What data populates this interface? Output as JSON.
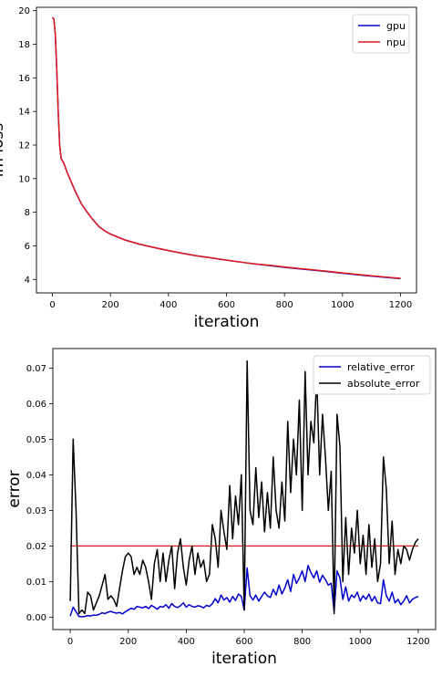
{
  "chart_data": [
    {
      "type": "line",
      "xlabel": "iteration",
      "ylabel": "lm loss",
      "xlim": [
        -55,
        1255
      ],
      "ylim": [
        3.2,
        20.2
      ],
      "xticks": [
        0,
        200,
        400,
        600,
        800,
        1000,
        1200
      ],
      "yticks": [
        4,
        6,
        8,
        10,
        12,
        14,
        16,
        18,
        20
      ],
      "legend_position": "top-right",
      "series": [
        {
          "name": "gpu",
          "color": "#0000cc",
          "x": [
            0,
            5,
            10,
            15,
            20,
            25,
            30,
            40,
            50,
            60,
            80,
            100,
            120,
            140,
            160,
            180,
            200,
            250,
            300,
            350,
            400,
            450,
            500,
            550,
            600,
            650,
            700,
            750,
            800,
            850,
            900,
            950,
            1000,
            1050,
            1100,
            1150,
            1200
          ],
          "y": [
            19.6,
            19.5,
            18.6,
            16.5,
            14.0,
            12.0,
            11.2,
            10.9,
            10.4,
            10.0,
            9.2,
            8.5,
            8.0,
            7.55,
            7.15,
            6.9,
            6.7,
            6.35,
            6.1,
            5.9,
            5.72,
            5.55,
            5.4,
            5.28,
            5.15,
            5.03,
            4.92,
            4.82,
            4.72,
            4.63,
            4.55,
            4.46,
            4.37,
            4.28,
            4.2,
            4.12,
            4.05
          ]
        },
        {
          "name": "npu",
          "color": "#e31a1c",
          "x": [
            0,
            5,
            10,
            15,
            20,
            25,
            30,
            40,
            50,
            60,
            80,
            100,
            120,
            140,
            160,
            180,
            200,
            250,
            300,
            350,
            400,
            450,
            500,
            550,
            600,
            650,
            700,
            750,
            800,
            850,
            900,
            950,
            1000,
            1050,
            1100,
            1150,
            1200
          ],
          "y": [
            19.6,
            19.5,
            18.6,
            16.5,
            14.0,
            12.0,
            11.2,
            10.9,
            10.4,
            10.0,
            9.2,
            8.5,
            8.0,
            7.55,
            7.15,
            6.9,
            6.7,
            6.35,
            6.1,
            5.9,
            5.72,
            5.55,
            5.4,
            5.28,
            5.15,
            5.03,
            4.92,
            4.84,
            4.74,
            4.65,
            4.57,
            4.48,
            4.39,
            4.3,
            4.22,
            4.14,
            4.07
          ]
        }
      ]
    },
    {
      "type": "line",
      "xlabel": "iteration",
      "ylabel": "error",
      "xlim": [
        -60,
        1260
      ],
      "ylim": [
        -0.0035,
        0.0755
      ],
      "xticks": [
        0,
        200,
        400,
        600,
        800,
        1000,
        1200
      ],
      "yticks": [
        0.0,
        0.01,
        0.02,
        0.03,
        0.04,
        0.05,
        0.06,
        0.07
      ],
      "ytick_labels": [
        "0.00",
        "0.01",
        "0.02",
        "0.03",
        "0.04",
        "0.05",
        "0.06",
        "0.07"
      ],
      "legend_position": "top-right",
      "hline": {
        "y": 0.02,
        "color": "#e31a1c"
      },
      "series": [
        {
          "name": "relative_error",
          "color": "#0000cc",
          "x": [
            0,
            10,
            20,
            30,
            40,
            50,
            60,
            70,
            80,
            90,
            100,
            110,
            120,
            130,
            140,
            150,
            160,
            170,
            180,
            190,
            200,
            210,
            220,
            230,
            240,
            250,
            260,
            270,
            280,
            290,
            300,
            310,
            320,
            330,
            340,
            350,
            360,
            370,
            380,
            390,
            400,
            410,
            420,
            430,
            440,
            450,
            460,
            470,
            480,
            490,
            500,
            510,
            520,
            530,
            540,
            550,
            560,
            570,
            580,
            590,
            600,
            610,
            620,
            630,
            640,
            650,
            660,
            670,
            680,
            690,
            700,
            710,
            720,
            730,
            740,
            750,
            760,
            770,
            780,
            790,
            800,
            810,
            820,
            830,
            840,
            850,
            860,
            870,
            880,
            890,
            900,
            910,
            920,
            930,
            940,
            950,
            960,
            970,
            980,
            990,
            1000,
            1010,
            1020,
            1030,
            1040,
            1050,
            1060,
            1070,
            1080,
            1090,
            1100,
            1110,
            1120,
            1130,
            1140,
            1150,
            1160,
            1170,
            1180,
            1190,
            1200
          ],
          "y": [
            0.0003,
            0.0028,
            0.0015,
            0.0002,
            0.0001,
            0.0002,
            0.0004,
            0.0003,
            0.0006,
            0.0005,
            0.0008,
            0.0012,
            0.001,
            0.0014,
            0.0016,
            0.0013,
            0.0011,
            0.0013,
            0.0009,
            0.0015,
            0.002,
            0.0025,
            0.0022,
            0.003,
            0.0028,
            0.0026,
            0.003,
            0.0024,
            0.0033,
            0.0028,
            0.0022,
            0.003,
            0.0028,
            0.0035,
            0.0025,
            0.0038,
            0.003,
            0.0027,
            0.0032,
            0.004,
            0.0028,
            0.0035,
            0.003,
            0.0028,
            0.0032,
            0.003,
            0.0026,
            0.0033,
            0.003,
            0.0038,
            0.0052,
            0.004,
            0.0062,
            0.0048,
            0.0055,
            0.0042,
            0.0058,
            0.0047,
            0.0065,
            0.0058,
            0.002,
            0.0138,
            0.006,
            0.0048,
            0.0062,
            0.0045,
            0.0058,
            0.007,
            0.006,
            0.0055,
            0.0078,
            0.0062,
            0.009,
            0.0065,
            0.0082,
            0.0105,
            0.0072,
            0.012,
            0.0095,
            0.011,
            0.013,
            0.01,
            0.0145,
            0.0125,
            0.011,
            0.013,
            0.0098,
            0.0118,
            0.0105,
            0.009,
            0.0095,
            0.0015,
            0.013,
            0.011,
            0.005,
            0.0085,
            0.0045,
            0.0062,
            0.0055,
            0.007,
            0.0045,
            0.006,
            0.005,
            0.0065,
            0.0045,
            0.0058,
            0.004,
            0.0038,
            0.0105,
            0.006,
            0.0045,
            0.007,
            0.004,
            0.005,
            0.0035,
            0.0045,
            0.006,
            0.004,
            0.005,
            0.0055,
            0.0058
          ]
        },
        {
          "name": "absolute_error",
          "color": "#000000",
          "x": [
            0,
            10,
            20,
            30,
            40,
            50,
            60,
            70,
            80,
            90,
            100,
            110,
            120,
            130,
            140,
            150,
            160,
            170,
            180,
            190,
            200,
            210,
            220,
            230,
            240,
            250,
            260,
            270,
            280,
            290,
            300,
            310,
            320,
            330,
            340,
            350,
            360,
            370,
            380,
            390,
            400,
            410,
            420,
            430,
            440,
            450,
            460,
            470,
            480,
            490,
            500,
            510,
            520,
            530,
            540,
            550,
            560,
            570,
            580,
            590,
            600,
            610,
            620,
            630,
            640,
            650,
            660,
            670,
            680,
            690,
            700,
            710,
            720,
            730,
            740,
            750,
            760,
            770,
            780,
            790,
            800,
            810,
            820,
            830,
            840,
            850,
            860,
            870,
            880,
            890,
            900,
            910,
            920,
            930,
            940,
            950,
            960,
            970,
            980,
            990,
            1000,
            1010,
            1020,
            1030,
            1040,
            1050,
            1060,
            1070,
            1080,
            1090,
            1100,
            1110,
            1120,
            1130,
            1140,
            1150,
            1160,
            1170,
            1180,
            1190,
            1200
          ],
          "y": [
            0.0045,
            0.05,
            0.03,
            0.001,
            0.002,
            0.001,
            0.007,
            0.006,
            0.002,
            0.004,
            0.006,
            0.009,
            0.012,
            0.005,
            0.006,
            0.005,
            0.003,
            0.008,
            0.013,
            0.017,
            0.018,
            0.017,
            0.012,
            0.014,
            0.012,
            0.016,
            0.014,
            0.01,
            0.005,
            0.015,
            0.019,
            0.01,
            0.018,
            0.01,
            0.016,
            0.02,
            0.008,
            0.018,
            0.022,
            0.014,
            0.009,
            0.016,
            0.02,
            0.012,
            0.018,
            0.014,
            0.016,
            0.01,
            0.012,
            0.026,
            0.022,
            0.014,
            0.03,
            0.024,
            0.019,
            0.037,
            0.022,
            0.034,
            0.026,
            0.04,
            0.002,
            0.072,
            0.03,
            0.026,
            0.042,
            0.028,
            0.038,
            0.024,
            0.035,
            0.025,
            0.045,
            0.03,
            0.025,
            0.038,
            0.027,
            0.055,
            0.035,
            0.05,
            0.04,
            0.061,
            0.03,
            0.069,
            0.04,
            0.055,
            0.049,
            0.068,
            0.04,
            0.057,
            0.045,
            0.03,
            0.041,
            0.001,
            0.057,
            0.048,
            0.01,
            0.028,
            0.012,
            0.025,
            0.018,
            0.03,
            0.015,
            0.023,
            0.012,
            0.026,
            0.014,
            0.022,
            0.01,
            0.015,
            0.045,
            0.036,
            0.015,
            0.027,
            0.012,
            0.019,
            0.015,
            0.02,
            0.019,
            0.016,
            0.019,
            0.021,
            0.022
          ]
        }
      ]
    }
  ]
}
